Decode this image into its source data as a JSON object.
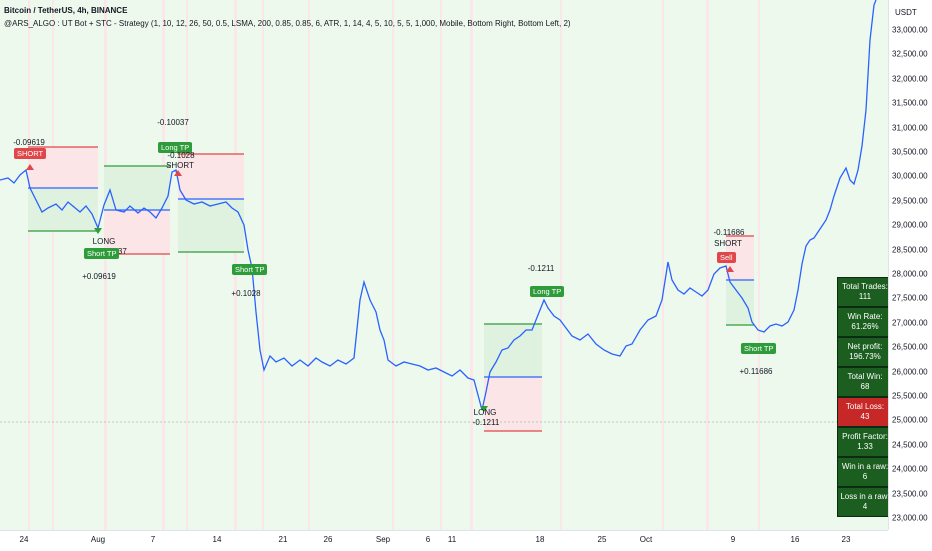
{
  "header": {
    "title": "Bitcoin / TetherUS, 4h, BINANCE",
    "indicator": "@ARS_ALGO : UT Bot + STC - Strategy (1, 10, 12, 26, 50, 0.5, LSMA, 200, 0.85, 0.85, 6, ATR, 1, 14, 4, 5, 10, 5, 5, 1,000, Mobile, Bottom Right, Bottom Left, 2)"
  },
  "price_scale": {
    "unit": "USDT",
    "labels": [
      "33,000.00",
      "32,500.00",
      "32,000.00",
      "31,500.00",
      "31,000.00",
      "30,500.00",
      "30,000.00",
      "29,500.00",
      "29,000.00",
      "28,500.00",
      "28,000.00",
      "27,500.00",
      "27,000.00",
      "26,500.00",
      "26,000.00",
      "25,500.00",
      "25,000.00",
      "24,500.00",
      "24,000.00",
      "23,500.00",
      "23,000.00"
    ]
  },
  "time_scale": {
    "labels": [
      "24",
      "Aug",
      "7",
      "14",
      "21",
      "26",
      "Sep",
      "6",
      "11",
      "18",
      "25",
      "Oct",
      "9",
      "16",
      "23"
    ]
  },
  "annotations": {
    "a1": "-0.09619",
    "a1_tag": "SHORT",
    "a2": "-0.10037",
    "a2_tag": "Long TP",
    "a3": "-0.1028",
    "a3_sub": "SHORT",
    "a4": "LONG",
    "a4b": "-0.10037",
    "a5": "Short TP",
    "a6": "+0.09619",
    "a7": "Short TP",
    "a8": "+0.1028",
    "a9": "-0.1211",
    "a10": "Long TP",
    "a11": "LONG",
    "a11b": "-0.1211",
    "a12": "-0.11686",
    "a12_sub": "SHORT",
    "a12_tag": "Sell",
    "a13": "Short TP",
    "a14": "+0.11686"
  },
  "stats": [
    {
      "label": "Total Trades:",
      "value": "111",
      "color": "#1b5e20"
    },
    {
      "label": "Win Rate:",
      "value": "61.26%",
      "color": "#1b5e20"
    },
    {
      "label": "Net profit:",
      "value": "196.73%",
      "color": "#1b5e20"
    },
    {
      "label": "Total Win:",
      "value": "68",
      "color": "#1b5e20"
    },
    {
      "label": "Total Loss:",
      "value": "43",
      "color": "#c62828"
    },
    {
      "label": "Profit Factor:",
      "value": "1.33",
      "color": "#1b5e20"
    },
    {
      "label": "Win in a raw:",
      "value": "6",
      "color": "#1b5e20"
    },
    {
      "label": "Loss in a raw:",
      "value": "4",
      "color": "#1b5e20"
    }
  ],
  "colors": {
    "price_line": "#2962ff",
    "bg_green": "#eaf7ea",
    "bg_red": "#fbe9ea",
    "tp_line": "#2e9c3a",
    "sl_line": "#e0464a"
  }
}
